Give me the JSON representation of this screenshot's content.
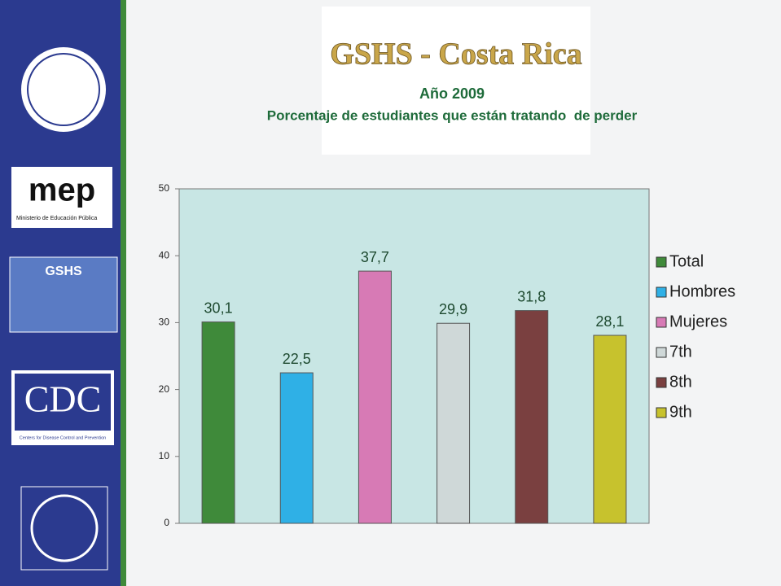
{
  "chart_data": {
    "type": "bar",
    "title": "GSHS - Costa Rica",
    "subtitle": "Año 2009",
    "subtitle2": "Porcentaje de estudiantes que están tratando  de perder",
    "categories": [
      "Total",
      "Hombres",
      "Mujeres",
      "7th",
      "8th",
      "9th"
    ],
    "values": [
      30.1,
      22.5,
      37.7,
      29.9,
      31.8,
      28.1
    ],
    "value_labels": [
      "30,1",
      "22,5",
      "37,7",
      "29,9",
      "31,8",
      "28,1"
    ],
    "colors": [
      "#3f8a3a",
      "#2fb0e6",
      "#d77ab5",
      "#cfd8d8",
      "#7a4040",
      "#c7c22d"
    ],
    "ylim": [
      0,
      50
    ],
    "yticks": [
      0,
      10,
      20,
      30,
      40,
      50
    ],
    "grid": false,
    "legend": "right"
  },
  "sidebar": {
    "logos": [
      "mep",
      "Ministerio de Educación Pública",
      "GSHS",
      "CDC",
      "Centers for Disease Control and Prevention"
    ]
  }
}
